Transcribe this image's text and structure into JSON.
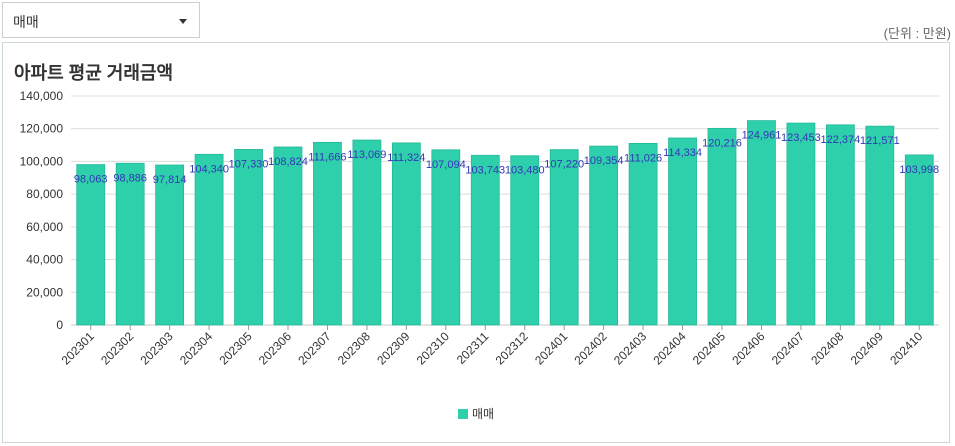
{
  "filter": {
    "selected": "매매",
    "icon": "chevron-down-icon"
  },
  "unit_label": "(단위 : 만원)",
  "chart_data": {
    "type": "bar",
    "title": "아파트 평균 거래금액",
    "categories": [
      "202301",
      "202302",
      "202303",
      "202304",
      "202305",
      "202306",
      "202307",
      "202308",
      "202309",
      "202310",
      "202311",
      "202312",
      "202401",
      "202402",
      "202403",
      "202404",
      "202405",
      "202406",
      "202407",
      "202408",
      "202409",
      "202410"
    ],
    "series": [
      {
        "name": "매매",
        "color": "#2ecfab",
        "values": [
          98063,
          98886,
          97814,
          104340,
          107330,
          108824,
          111666,
          113069,
          111324,
          107094,
          103743,
          103480,
          107220,
          109354,
          111026,
          114334,
          120216,
          124961,
          123453,
          122374,
          121571,
          103998
        ],
        "labels": [
          "98,063",
          "98,886",
          "97,814",
          "104,340",
          "107,330",
          "108,824",
          "111,666",
          "113,069",
          "111,324",
          "107,094",
          "103,743",
          "103,480",
          "107,220",
          "109,354",
          "111,026",
          "114,334",
          "120,216",
          "124,961",
          "123,453",
          "122,374",
          "121,571",
          "103,998"
        ]
      }
    ],
    "ylim": [
      0,
      140000
    ],
    "yticks": [
      0,
      20000,
      40000,
      60000,
      80000,
      100000,
      120000,
      140000
    ],
    "ytick_labels": [
      "0",
      "20,000",
      "40,000",
      "60,000",
      "80,000",
      "100,000",
      "120,000",
      "140,000"
    ],
    "xlabel": "",
    "ylabel": "",
    "grid": true,
    "legend": "bottom-center"
  }
}
